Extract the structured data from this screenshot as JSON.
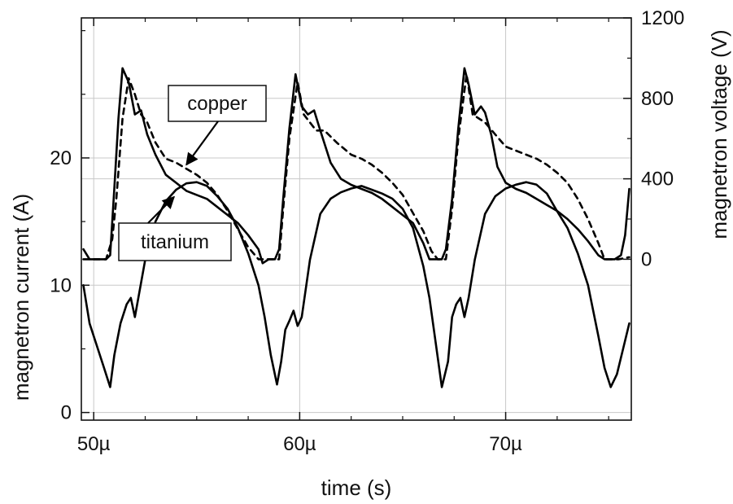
{
  "chart_data": {
    "type": "line",
    "xlabel": "time (s)",
    "ylabel_left": "magnetron current (A)",
    "ylabel_right": "magnetron voltage (V)",
    "x_unit": "s",
    "xlim": [
      4.94e-05,
      7.61e-05
    ],
    "ylim_left": [
      -0.6,
      31.0
    ],
    "ylim_right": [
      -800,
      1200
    ],
    "grid": true,
    "x_ticks": [
      {
        "value": 5e-05,
        "label": "50µ"
      },
      {
        "value": 6e-05,
        "label": "60µ"
      },
      {
        "value": 7e-05,
        "label": "70µ"
      }
    ],
    "y_left_ticks": [
      {
        "value": 0,
        "label": "0"
      },
      {
        "value": 10,
        "label": "10"
      },
      {
        "value": 20,
        "label": "20"
      }
    ],
    "y_right_ticks": [
      {
        "value": 0,
        "label": "0"
      },
      {
        "value": 400,
        "label": "400"
      },
      {
        "value": 800,
        "label": "800"
      },
      {
        "value": 1200,
        "label": "1200"
      }
    ],
    "series": [
      {
        "axis": "left",
        "style": "solid",
        "x_us": [
          49.5,
          49.8,
          50.2,
          50.5,
          50.8,
          51.0,
          51.3,
          51.6,
          51.8,
          52.0,
          52.5,
          53.0,
          53.5,
          54.0,
          54.5,
          55.0,
          55.5,
          56.0,
          56.5,
          57.0,
          57.5,
          58.0,
          58.3,
          58.6,
          58.9,
          59.1,
          59.3,
          59.5,
          59.7,
          59.9,
          60.1,
          60.5,
          61.0,
          61.5,
          62.0,
          62.5,
          63.0,
          63.5,
          64.0,
          64.5,
          65.0,
          65.5,
          66.0,
          66.3,
          66.6,
          66.9,
          67.2,
          67.4,
          67.6,
          67.8,
          68.0,
          68.2,
          68.5,
          69.0,
          69.5,
          70.0,
          70.5,
          71.0,
          71.5,
          72.0,
          72.5,
          73.0,
          73.5,
          74.0,
          74.5,
          74.8,
          75.1,
          75.4,
          75.7,
          76.0
        ],
        "y": [
          10.0,
          7.0,
          5.0,
          3.5,
          2.0,
          4.5,
          7.0,
          8.5,
          9.0,
          7.5,
          12.0,
          15.0,
          16.6,
          17.5,
          18.0,
          18.1,
          17.8,
          17.0,
          16.0,
          14.5,
          12.5,
          10.0,
          7.5,
          4.5,
          2.2,
          4.0,
          6.5,
          7.2,
          8.0,
          6.8,
          7.5,
          12.0,
          15.6,
          16.8,
          17.3,
          17.6,
          17.8,
          17.5,
          17.2,
          16.8,
          16.0,
          14.5,
          11.5,
          9.0,
          5.5,
          2.0,
          4.0,
          7.5,
          8.5,
          9.0,
          7.5,
          9.0,
          12.0,
          15.6,
          17.0,
          17.6,
          17.9,
          18.1,
          17.9,
          17.2,
          15.8,
          14.5,
          12.5,
          10.0,
          6.0,
          3.5,
          2.0,
          3.0,
          5.0,
          7.0
        ]
      },
      {
        "axis": "right",
        "style": "solid",
        "name": "titanium",
        "x_us": [
          49.5,
          49.8,
          50.2,
          50.6,
          50.8,
          51.0,
          51.2,
          51.4,
          51.7,
          52.0,
          52.3,
          52.6,
          53.0,
          53.5,
          54.0,
          54.5,
          55.0,
          55.5,
          56.0,
          56.5,
          57.0,
          57.5,
          58.0,
          58.2,
          58.5,
          58.8,
          59.0,
          59.2,
          59.5,
          59.8,
          60.1,
          60.4,
          60.7,
          61.0,
          61.5,
          62.0,
          62.5,
          63.0,
          63.5,
          64.0,
          64.5,
          65.0,
          65.5,
          66.0,
          66.3,
          66.6,
          66.9,
          67.1,
          67.4,
          67.7,
          68.0,
          68.2,
          68.5,
          68.8,
          69.0,
          69.3,
          69.6,
          70.0,
          70.5,
          71.0,
          71.5,
          72.0,
          72.5,
          73.0,
          73.5,
          74.0,
          74.5,
          74.8,
          75.0,
          75.3,
          75.6,
          75.8,
          76.0
        ],
        "y": [
          50,
          0,
          0,
          0,
          20,
          350,
          700,
          950,
          880,
          720,
          740,
          620,
          520,
          420,
          380,
          340,
          320,
          300,
          260,
          220,
          180,
          120,
          50,
          -20,
          0,
          0,
          50,
          300,
          650,
          920,
          760,
          720,
          740,
          640,
          480,
          400,
          370,
          350,
          330,
          300,
          260,
          220,
          180,
          80,
          0,
          0,
          0,
          50,
          300,
          650,
          950,
          870,
          720,
          760,
          730,
          620,
          460,
          380,
          350,
          330,
          300,
          270,
          240,
          200,
          150,
          90,
          20,
          0,
          0,
          0,
          20,
          120,
          350
        ]
      },
      {
        "axis": "right",
        "style": "dashed",
        "name": "copper",
        "x_us": [
          49.5,
          50.6,
          50.9,
          51.1,
          51.4,
          51.7,
          52.0,
          52.3,
          52.6,
          53.0,
          53.5,
          54.0,
          54.5,
          55.0,
          55.5,
          56.0,
          56.5,
          57.0,
          57.5,
          58.0,
          58.2,
          58.5,
          59.0,
          59.2,
          59.5,
          59.9,
          60.2,
          60.5,
          60.8,
          61.2,
          61.8,
          62.5,
          63.0,
          63.5,
          64.0,
          64.5,
          65.0,
          65.5,
          66.0,
          66.4,
          66.7,
          67.1,
          67.4,
          67.7,
          68.1,
          68.4,
          68.7,
          69.0,
          69.5,
          70.0,
          70.5,
          71.0,
          71.5,
          72.0,
          72.5,
          73.0,
          73.5,
          74.0,
          74.5,
          74.8,
          75.1,
          75.5,
          76.0
        ],
        "y": [
          0,
          0,
          100,
          300,
          700,
          900,
          820,
          720,
          680,
          580,
          500,
          480,
          450,
          420,
          380,
          320,
          240,
          150,
          60,
          0,
          0,
          0,
          0,
          250,
          600,
          880,
          720,
          680,
          640,
          640,
          580,
          520,
          500,
          470,
          430,
          380,
          320,
          230,
          140,
          40,
          0,
          0,
          250,
          600,
          920,
          720,
          700,
          680,
          620,
          560,
          540,
          520,
          500,
          470,
          430,
          380,
          300,
          200,
          80,
          0,
          0,
          0,
          10
        ]
      }
    ],
    "annotations": [
      {
        "text": "copper",
        "target_x_us": 54.5,
        "target_y_right": 470
      },
      {
        "text": "titanium",
        "target_x_us": 53.9,
        "target_y_right": 310
      }
    ]
  }
}
